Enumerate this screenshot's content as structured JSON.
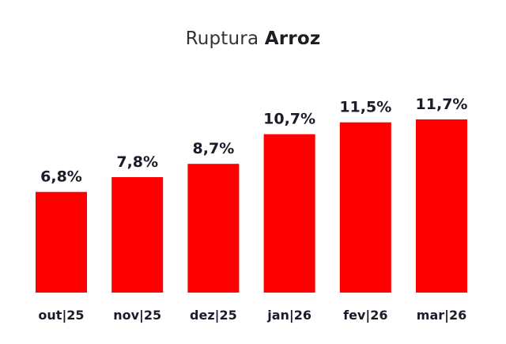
{
  "title": {
    "prefix": "Ruptura",
    "emphasis": "Arroz"
  },
  "chart_data": {
    "type": "bar",
    "title": "Ruptura Arroz",
    "categories": [
      "out|25",
      "nov|25",
      "dez|25",
      "jan|26",
      "fev|26",
      "mar|26"
    ],
    "values": [
      6.8,
      7.8,
      8.7,
      10.7,
      11.5,
      11.7
    ],
    "value_labels": [
      "6,8%",
      "7,8%",
      "8,7%",
      "10,7%",
      "11,5%",
      "11,7%"
    ],
    "bar_color": "#ff0000",
    "ylim": [
      0,
      11.7
    ],
    "grid": false,
    "legend": "none"
  }
}
